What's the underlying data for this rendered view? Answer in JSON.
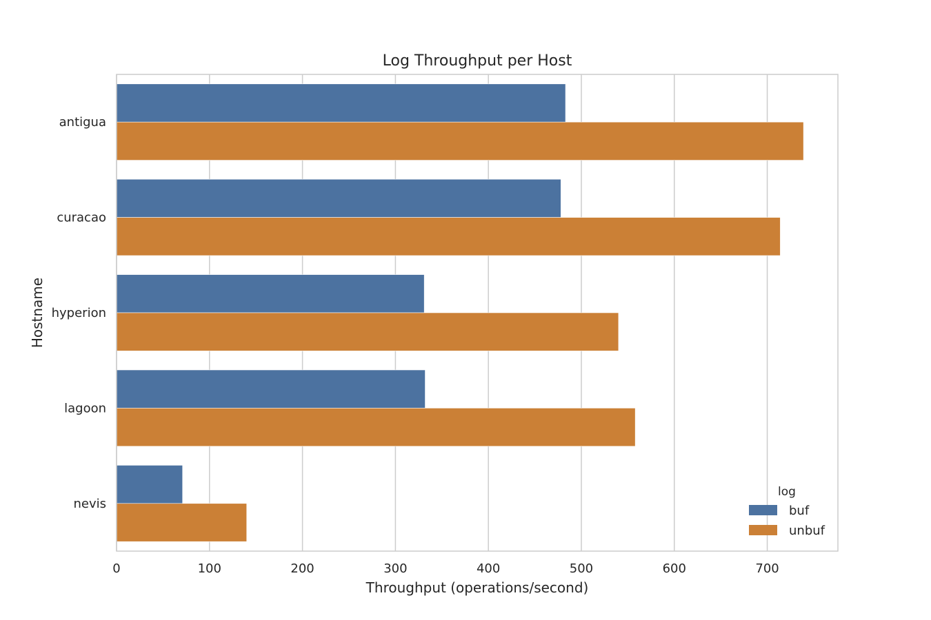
{
  "chart_data": {
    "type": "bar",
    "orientation": "horizontal",
    "title": "Log Throughput per Host",
    "xlabel": "Throughput (operations/second)",
    "ylabel": "Hostname",
    "categories": [
      "antigua",
      "curacao",
      "hyperion",
      "lagoon",
      "nevis"
    ],
    "series": [
      {
        "name": "buf",
        "color": "#4c72a0",
        "values": [
          483,
          478,
          331,
          332,
          71
        ]
      },
      {
        "name": "unbuf",
        "color": "#cb8036",
        "values": [
          739,
          714,
          540,
          558,
          140
        ]
      }
    ],
    "xlim": [
      0,
      776
    ],
    "xticks": [
      0,
      100,
      200,
      300,
      400,
      500,
      600,
      700
    ],
    "grid": true,
    "legend": {
      "title": "log",
      "position": "lower-right"
    }
  }
}
